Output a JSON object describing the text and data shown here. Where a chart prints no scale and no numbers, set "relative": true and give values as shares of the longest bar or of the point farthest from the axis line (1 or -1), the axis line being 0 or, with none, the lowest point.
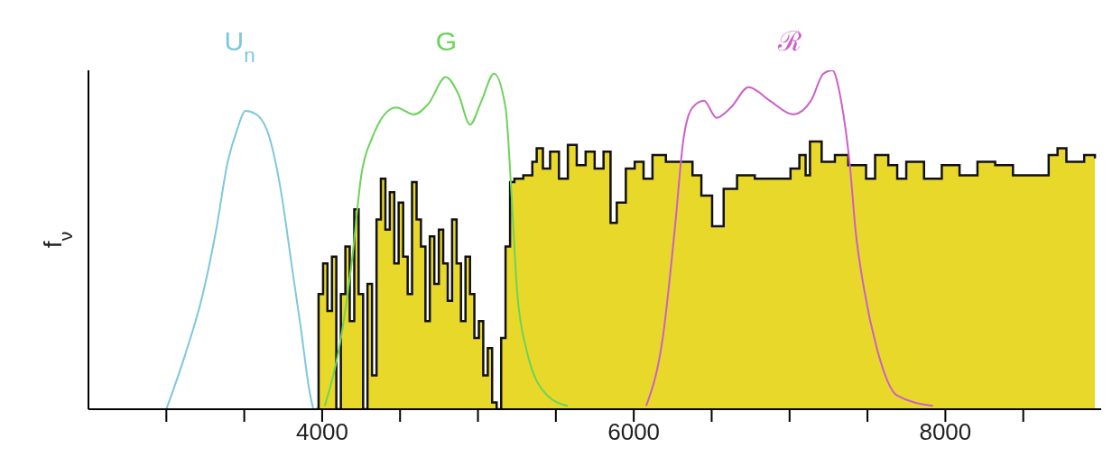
{
  "chart_data": {
    "type": "line",
    "ylabel": "f$_{ν}$",
    "relative": true,
    "xlim": [
      2500,
      9000
    ],
    "xticks": [
      {
        "value": 3000,
        "label": null
      },
      {
        "value": 3500,
        "label": null
      },
      4000,
      {
        "value": 4500,
        "label": null
      },
      {
        "value": 5000,
        "label": null
      },
      {
        "value": 5500,
        "label": null
      },
      6000,
      {
        "value": 6500,
        "label": null
      },
      {
        "value": 7000,
        "label": null
      },
      {
        "value": 7500,
        "label": null
      },
      8000,
      {
        "value": 8500,
        "label": null
      }
    ],
    "series": [
      {
        "type": "area",
        "color": "#e8d82a",
        "x": [
          3960,
          3977,
          4006,
          4034,
          4063,
          4091,
          4120,
          4149,
          4177,
          4206,
          4234,
          4263,
          4291,
          4320,
          4349,
          4377,
          4406,
          4434,
          4463,
          4491,
          4520,
          4549,
          4577,
          4606,
          4634,
          4663,
          4691,
          4720,
          4749,
          4777,
          4806,
          4834,
          4863,
          4891,
          4920,
          4949,
          4977,
          5006,
          5034,
          5063,
          5091,
          5120,
          5149,
          5177,
          5206,
          5234,
          5291,
          5349,
          5377,
          5417,
          5463,
          5520,
          5577,
          5634,
          5691,
          5749,
          5806,
          5851,
          5891,
          5949,
          6006,
          6063,
          6120,
          6206,
          6291,
          6377,
          6434,
          6503,
          6577,
          6663,
          6777,
          6891,
          7006,
          7063,
          7103,
          7131,
          7206,
          7291,
          7377,
          7434,
          7491,
          7549,
          7634,
          7691,
          7749,
          7863,
          7977,
          8091,
          8206,
          8320,
          8434,
          8549,
          8663,
          8720,
          8777,
          8891,
          8960
        ],
        "values": [
          0,
          0.34,
          0.43,
          0.29,
          0.45,
          0,
          0.34,
          0.48,
          0.26,
          0.59,
          0.34,
          0,
          0.37,
          0.1,
          0.56,
          0.68,
          0.53,
          0.64,
          0.43,
          0.61,
          0.45,
          0.34,
          0.67,
          0.56,
          0.48,
          0.26,
          0.51,
          0.37,
          0.53,
          0.43,
          0.32,
          0.56,
          0.43,
          0.26,
          0.45,
          0.34,
          0.21,
          0.26,
          0.1,
          0.18,
          0.02,
          0,
          0.21,
          0.48,
          0.67,
          0.68,
          0.69,
          0.73,
          0.77,
          0.71,
          0.76,
          0.68,
          0.78,
          0.72,
          0.76,
          0.71,
          0.76,
          0.55,
          0.61,
          0.71,
          0.73,
          0.68,
          0.75,
          0.73,
          0.73,
          0.69,
          0.63,
          0.54,
          0.65,
          0.69,
          0.68,
          0.68,
          0.71,
          0.75,
          0.69,
          0.79,
          0.73,
          0.75,
          0.72,
          0.72,
          0.68,
          0.75,
          0.72,
          0.68,
          0.73,
          0.68,
          0.72,
          0.69,
          0.73,
          0.72,
          0.69,
          0.69,
          0.75,
          0.77,
          0.73,
          0.75,
          0.74
        ]
      },
      {
        "name": "U$_{n}$",
        "color": "#7ec8dc",
        "x": [
          3000,
          3120,
          3234,
          3320,
          3394,
          3451,
          3509,
          3577,
          3663,
          3737,
          3806,
          3863,
          3920,
          3943
        ],
        "values": [
          0,
          0.16,
          0.34,
          0.53,
          0.73,
          0.82,
          0.88,
          0.87,
          0.8,
          0.64,
          0.42,
          0.24,
          0.05,
          0
        ]
      },
      {
        "name": "G",
        "color": "#6cd35a",
        "x": [
          4017,
          4109,
          4194,
          4251,
          4320,
          4474,
          4589,
          4680,
          4794,
          4874,
          4949,
          5023,
          5103,
          5177,
          5217,
          5251,
          5309,
          5446,
          5577
        ],
        "values": [
          0.01,
          0.18,
          0.45,
          0.69,
          0.8,
          0.89,
          0.87,
          0.9,
          0.98,
          0.93,
          0.84,
          0.91,
          0.99,
          0.89,
          0.62,
          0.35,
          0.18,
          0.04,
          0.01
        ]
      },
      {
        "name": "ℛ",
        "color": "#cc5fc8",
        "x": [
          6080,
          6189,
          6263,
          6320,
          6377,
          6451,
          6531,
          6623,
          6737,
          6874,
          7023,
          7137,
          7217,
          7274,
          7331,
          7389,
          7423,
          7480,
          7560,
          7691,
          7920
        ],
        "values": [
          0.01,
          0.22,
          0.53,
          0.8,
          0.89,
          0.91,
          0.86,
          0.89,
          0.95,
          0.91,
          0.87,
          0.91,
          0.99,
          1.0,
          0.91,
          0.71,
          0.53,
          0.35,
          0.18,
          0.04,
          0.01
        ]
      }
    ]
  }
}
